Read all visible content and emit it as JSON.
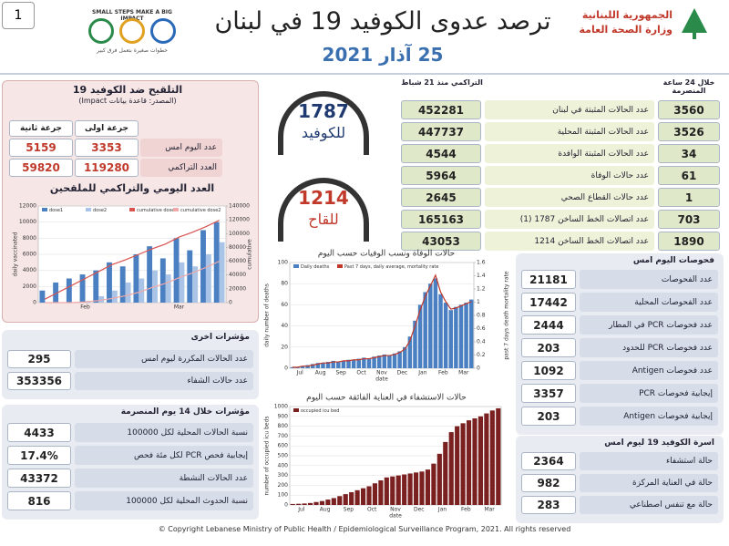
{
  "header": {
    "badge": "1",
    "title": "ترصد عدوى الكوفيد 19 في لبنان",
    "date": "25 آذار 2021",
    "ministry_line1": "الجمهورية اللبنانية",
    "ministry_line2": "وزارة الصحة العامة",
    "campaign": "SMALL STEPS MAKE A BIG IMPACT",
    "campaign_sub": "خطوات صغيرة بتعمل فرق كبير"
  },
  "summary": {
    "col_24h": "خلال 24 ساعة المنصرمة",
    "col_cum": "التراكمي منذ 21 شباط",
    "rows": [
      {
        "label": "عدد الحالات المثبتة في لبنان",
        "cumulative": 452281,
        "last_24h": 3560
      },
      {
        "label": "عدد الحالات المثبتة المحلية",
        "cumulative": 447737,
        "last_24h": 3526
      },
      {
        "label": "عدد الحالات المثبتة الوافدة",
        "cumulative": 4544,
        "last_24h": 34
      },
      {
        "label": "عدد حالات الوفاة",
        "cumulative": 5964,
        "last_24h": 61
      },
      {
        "label": "عدد حالات القطاع الصحي",
        "cumulative": 2645,
        "last_24h": 1
      },
      {
        "label": "عدد اتصالات الخط الساخن 1787 (1)",
        "cumulative": 165163,
        "last_24h": 703
      },
      {
        "label": "عدد اتصالات الخط الساخن 1214",
        "cumulative": 43053,
        "last_24h": 1890
      }
    ]
  },
  "hotlines": [
    {
      "number": 1787,
      "label": "للكوفيد"
    },
    {
      "number": 1214,
      "label": "للقاح"
    }
  ],
  "vaccination": {
    "title": "التلقيح ضد الكوفيد 19",
    "source": "(المصدر: قاعدة بيانات Impact)",
    "dose2_header": "جرعة ثانية",
    "dose1_header": "جرعة اولى",
    "rows": [
      {
        "label": "عدد اليوم امس",
        "dose2": 5159,
        "dose1": 3353
      },
      {
        "label": "العدد التراكمي",
        "dose2": 59820,
        "dose1": 119280
      }
    ],
    "chart_title": "العدد اليومي والتراكمي للملقحين",
    "chart": {
      "type": "bar",
      "x_labels": [
        "Feb",
        "Mar"
      ],
      "y_label": "daily vaccinated",
      "y2_label": "cumulative",
      "ylim": [
        0,
        12000
      ],
      "yticks": [
        0,
        2000,
        4000,
        6000,
        8000,
        10000,
        12000
      ],
      "y2lim": [
        0,
        140000
      ],
      "y2ticks": [
        0,
        20000,
        40000,
        60000,
        80000,
        100000,
        120000,
        140000
      ],
      "series": [
        {
          "name": "dose1",
          "type": "bar",
          "color": "#4a7fc1",
          "values": [
            1500,
            2500,
            3000,
            3500,
            4000,
            5000,
            4500,
            6000,
            7000,
            5500,
            8000,
            6500,
            9000,
            10000
          ]
        },
        {
          "name": "dose2",
          "type": "bar",
          "color": "#a9c4e6",
          "values": [
            0,
            0,
            0,
            200,
            800,
            1500,
            2500,
            3000,
            4000,
            3500,
            5000,
            4500,
            6000,
            7500
          ]
        },
        {
          "name": "cumulative dose1",
          "type": "line",
          "axis": "y2",
          "color": "#d9534f",
          "values": [
            5000,
            15000,
            25000,
            35000,
            45000,
            55000,
            62000,
            70000,
            78000,
            85000,
            95000,
            102000,
            110000,
            119280
          ]
        },
        {
          "name": "cumulative dose2",
          "type": "line",
          "axis": "y2",
          "color": "#f0a8a8",
          "values": [
            0,
            0,
            0,
            1000,
            3000,
            6000,
            10000,
            15000,
            22000,
            28000,
            36000,
            43000,
            51000,
            59820
          ]
        }
      ]
    }
  },
  "other": {
    "title": "مؤشرات اخرى",
    "rows": [
      {
        "value": 295,
        "label": "عدد الحالات المكررة ليوم امس"
      },
      {
        "value": 353356,
        "label": "عدد حالات الشفاء"
      }
    ]
  },
  "last14": {
    "title": "مؤشرات خلال 14 يوم المنصرمة",
    "rows": [
      {
        "value": 4433,
        "label": "نسبة الحالات المحلية لكل 100000"
      },
      {
        "value": "17.4%",
        "label": "إيجابية فحص PCR لكل مئة فحص"
      },
      {
        "value": 43372,
        "label": "عدد الحالات النشطة"
      },
      {
        "value": 816,
        "label": "نسبة الحدوث المحلية لكل 100000"
      }
    ]
  },
  "tests": {
    "title": "فحوصات اليوم امس",
    "rows": [
      {
        "value": 21181,
        "label": "عدد الفحوصات"
      },
      {
        "value": 17442,
        "label": "عدد الفحوصات المحلية"
      },
      {
        "value": 2444,
        "label": "عدد فحوصات PCR في المطار"
      },
      {
        "value": 203,
        "label": "عدد فحوصات PCR للحدود"
      },
      {
        "value": 1092,
        "label": "عدد فحوصات Antigen"
      },
      {
        "value": 3357,
        "label": "إيجابية فحوصات PCR"
      },
      {
        "value": 203,
        "label": "إيجابية فحوصات Antigen"
      }
    ]
  },
  "family": {
    "title": "اسرة الكوفيد 19 ليوم امس",
    "rows": [
      {
        "value": 2364,
        "label": "حالة استشفاء"
      },
      {
        "value": 982,
        "label": "حالة في العناية المركزة"
      },
      {
        "value": 283,
        "label": "حالة مع تنفس اصطناعي"
      }
    ]
  },
  "deaths_chart": {
    "type": "bar",
    "title": "حالات الوفاة ونسب الوفيات حسب اليوم",
    "x_label": "date",
    "y_label": "daily number of deaths",
    "y2_label": "past 7 days death mortality rate",
    "x_labels": [
      "Jul",
      "Aug",
      "Sep",
      "Oct",
      "Nov",
      "Dec",
      "Jan",
      "Feb",
      "Mar"
    ],
    "ylim": [
      0,
      100
    ],
    "yticks": [
      0,
      20,
      40,
      60,
      80,
      100
    ],
    "y2lim": [
      0,
      1.6
    ],
    "y2ticks": [
      0,
      0.2,
      0.4,
      0.6,
      0.8,
      1,
      1.2,
      1.4,
      1.6
    ],
    "series": [
      {
        "name": "Daily deaths",
        "type": "bar",
        "color": "#4a7fc1",
        "values": [
          1,
          1,
          2,
          3,
          4,
          5,
          5,
          6,
          7,
          6,
          7,
          8,
          8,
          9,
          10,
          9,
          11,
          12,
          13,
          12,
          14,
          16,
          20,
          30,
          45,
          60,
          72,
          80,
          85,
          70,
          62,
          55,
          58,
          60,
          62,
          65
        ]
      },
      {
        "name": "Past 7 days, daily average, mortality rate",
        "type": "line",
        "color": "#c0392b",
        "values": [
          1,
          1,
          2,
          2,
          3,
          4,
          5,
          5,
          6,
          6,
          7,
          7,
          8,
          8,
          9,
          9,
          10,
          11,
          12,
          12,
          13,
          15,
          18,
          26,
          40,
          55,
          68,
          78,
          88,
          72,
          63,
          56,
          57,
          59,
          61,
          63
        ]
      }
    ]
  },
  "icu_chart": {
    "type": "bar",
    "title": "حالات الاستشفاء في العناية الفائقة حسب اليوم",
    "x_label": "date",
    "y_label": "number of occupied icu beds",
    "x_labels": [
      "Jul",
      "Aug",
      "Sep",
      "Oct",
      "Nov",
      "Dec",
      "Jan",
      "Feb",
      "Mar"
    ],
    "ylim": [
      0,
      1000
    ],
    "yticks": [
      0,
      100,
      200,
      300,
      400,
      500,
      600,
      700,
      800,
      900,
      1000
    ],
    "series": [
      {
        "name": "occupied icu bed",
        "type": "bar",
        "color": "#7a2020",
        "values": [
          10,
          12,
          15,
          20,
          30,
          40,
          55,
          70,
          90,
          110,
          130,
          150,
          170,
          190,
          220,
          250,
          280,
          290,
          300,
          310,
          320,
          330,
          340,
          360,
          420,
          520,
          640,
          740,
          800,
          830,
          860,
          880,
          900,
          930,
          960,
          982
        ]
      }
    ]
  },
  "footer": "© Copyright Lebanese Ministry of Public Health / Epidemiological Surveillance Program, 2021. All rights reserved"
}
